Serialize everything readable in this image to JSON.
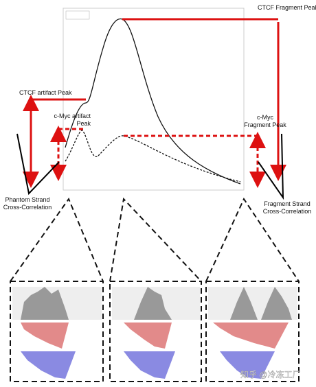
{
  "labels": {
    "ctcf_fragment_peak": "CTCF Fragment Peak",
    "ctcf_artifact_peak": "CTCF artifact Peak",
    "cmyc_artifact_peak": [
      "c-Myc artifact",
      "Peak"
    ],
    "cmyc_fragment_peak": [
      "c-Myc",
      "Fragment Peak"
    ],
    "phantom_strand": [
      "Phantom Strand",
      "Cross-Correlation"
    ],
    "fragment_strand": [
      "Fragment Strand",
      "Cross-Correlation"
    ]
  },
  "watermark": "知乎 @冷冻工厂"
}
